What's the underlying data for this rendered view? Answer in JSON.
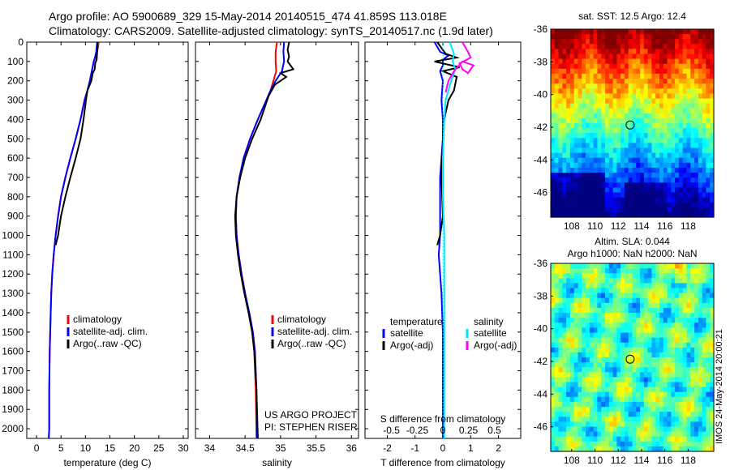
{
  "header": {
    "title1": "Argo profile: AO 5900689_329 15-May-2014 20140515_474 41.859S 113.018E",
    "title2": "Climatology: CARS2009. Satellite-adjusted climatology: synTS_20140517.nc (1.9d later)"
  },
  "stamp": "IMOS 24-May-2014 20:00:21",
  "colors": {
    "climatology": "#ff0000",
    "satellite": "#0000ff",
    "argo": "#000000",
    "sal_satellite": "#00e5ff",
    "sal_argo": "#ff00ff"
  },
  "credit": {
    "line1": "US ARGO PROJECT",
    "line2": "PI: STEPHEN RISER"
  },
  "chart_data": [
    {
      "type": "line",
      "name": "temperature",
      "xlabel": "temperature (deg C)",
      "ylabel": "",
      "xlim": [
        -2,
        31
      ],
      "ylim": [
        2050,
        0
      ],
      "y_reversed": true,
      "xticks": [
        0,
        5,
        10,
        15,
        20,
        25,
        30
      ],
      "yticks": [
        0,
        100,
        200,
        300,
        400,
        500,
        600,
        700,
        800,
        900,
        1000,
        1100,
        1200,
        1300,
        1400,
        1500,
        1600,
        1700,
        1800,
        1900,
        2000
      ],
      "legend": [
        "climatology",
        "satellite-adj. clim.",
        "Argo(..raw -QC)"
      ],
      "series": [
        {
          "name": "climatology",
          "color": "#ff0000",
          "x": [
            12.7,
            12.6,
            12.4,
            12.1,
            11.7,
            11.3,
            10.9,
            10.4,
            9.8,
            9.0,
            8.0,
            6.9,
            5.9,
            5.0,
            4.4,
            3.9,
            3.5,
            3.2,
            3.0,
            2.9,
            2.8,
            2.7,
            2.6,
            2.6,
            2.5
          ],
          "y": [
            0,
            25,
            50,
            75,
            100,
            150,
            200,
            250,
            300,
            400,
            500,
            600,
            700,
            800,
            900,
            1000,
            1100,
            1200,
            1300,
            1400,
            1500,
            1600,
            1800,
            2000,
            2050
          ]
        },
        {
          "name": "satellite-adj. clim.",
          "color": "#0000ff",
          "x": [
            12.4,
            12.3,
            12.2,
            12.0,
            11.7,
            11.3,
            10.9,
            10.4,
            9.8,
            9.0,
            8.0,
            6.9,
            5.9,
            5.0,
            4.4,
            3.9,
            3.5,
            3.2,
            3.0,
            2.9,
            2.8,
            2.7,
            2.6,
            2.6,
            2.5
          ],
          "y": [
            0,
            25,
            50,
            75,
            100,
            150,
            200,
            250,
            300,
            400,
            500,
            600,
            700,
            800,
            900,
            1000,
            1100,
            1200,
            1300,
            1400,
            1500,
            1600,
            1800,
            2000,
            2050
          ]
        },
        {
          "name": "Argo(..raw -QC)",
          "color": "#000000",
          "x": [
            12.5,
            12.4,
            12.4,
            12.3,
            12.0,
            11.9,
            11.5,
            11.2,
            10.4,
            10.1,
            9.6,
            9.0,
            8.0,
            6.9,
            5.9,
            5.0,
            4.4,
            3.9
          ],
          "y": [
            0,
            25,
            50,
            90,
            110,
            140,
            160,
            200,
            250,
            300,
            400,
            500,
            600,
            700,
            800,
            900,
            1000,
            1050
          ]
        }
      ]
    },
    {
      "type": "line",
      "name": "salinity",
      "xlabel": "salinity",
      "ylabel": "",
      "xlim": [
        33.8,
        36.1
      ],
      "ylim": [
        2050,
        0
      ],
      "y_reversed": true,
      "xticks": [
        34,
        34.5,
        35,
        35.5,
        36
      ],
      "legend": [
        "climatology",
        "satellite-adj. clim.",
        "Argo(..raw -QC)"
      ],
      "series": [
        {
          "name": "climatology",
          "color": "#ff0000",
          "x": [
            34.95,
            34.93,
            34.93,
            34.94,
            34.9,
            34.86,
            34.8,
            34.68,
            34.57,
            34.48,
            34.42,
            34.38,
            34.37,
            34.38,
            34.41,
            34.45,
            34.5,
            34.55,
            34.6,
            34.63,
            34.65,
            34.66
          ],
          "y": [
            0,
            50,
            100,
            150,
            200,
            250,
            300,
            400,
            500,
            600,
            700,
            800,
            900,
            1000,
            1100,
            1200,
            1300,
            1400,
            1500,
            1600,
            1800,
            2050
          ]
        },
        {
          "name": "satellite-adj. clim.",
          "color": "#0000ff",
          "x": [
            35.05,
            35.04,
            35.05,
            35.02,
            34.93,
            34.86,
            34.8,
            34.68,
            34.57,
            34.48,
            34.42,
            34.38,
            34.37,
            34.38,
            34.41,
            34.45,
            34.5,
            34.56,
            34.61,
            34.64,
            34.66,
            34.67
          ],
          "y": [
            0,
            50,
            100,
            150,
            200,
            250,
            300,
            400,
            500,
            600,
            700,
            800,
            900,
            1000,
            1100,
            1200,
            1300,
            1400,
            1500,
            1600,
            1800,
            2050
          ]
        },
        {
          "name": "Argo(..raw -QC)",
          "color": "#000000",
          "x": [
            35.12,
            35.1,
            35.12,
            35.1,
            35.18,
            35.0,
            35.08,
            34.92,
            34.83,
            34.72,
            34.6,
            34.5,
            34.43,
            34.38,
            34.36,
            34.37,
            34.4,
            34.44,
            34.49,
            34.55,
            34.6,
            34.63,
            34.66,
            34.68
          ],
          "y": [
            0,
            40,
            75,
            100,
            140,
            160,
            180,
            220,
            280,
            400,
            500,
            600,
            700,
            800,
            900,
            1000,
            1100,
            1200,
            1300,
            1400,
            1500,
            1600,
            1800,
            2050
          ]
        }
      ]
    },
    {
      "type": "line",
      "name": "differences",
      "xlabel": "T difference from climatology",
      "xlabel_top": "S difference from climatology",
      "xlim": [
        -2.8,
        2.8
      ],
      "ylim": [
        2050,
        0
      ],
      "y_reversed": true,
      "xticks": [
        -2,
        -1,
        0,
        1,
        2
      ],
      "top_ticks": [
        {
          "label": "-0.5",
          "x": -1.85
        },
        {
          "label": "-0.25",
          "x": -0.92
        },
        {
          "label": "0",
          "x": 0
        },
        {
          "label": "0.25",
          "x": 0.92
        },
        {
          "label": "0.5",
          "x": 1.85
        }
      ],
      "legend_headers": [
        "temperature",
        "salinity"
      ],
      "legend": [
        "satellite",
        "Argo(-adj)",
        "satellite",
        "Argo(-adj)"
      ],
      "series": [
        {
          "name": "T satellite",
          "color": "#0000ff",
          "x": [
            -0.3,
            -0.1,
            0.2,
            0.0,
            0.0,
            -0.1,
            0.0,
            -0.05,
            0.0,
            0.0,
            -0.1,
            -0.1,
            -0.1,
            -0.15,
            -0.1,
            -0.05,
            0.0,
            0.0
          ],
          "y": [
            0,
            50,
            70,
            90,
            120,
            150,
            200,
            300,
            400,
            500,
            700,
            900,
            1000,
            1100,
            1200,
            1300,
            1500,
            2050
          ]
        },
        {
          "name": "T Argo(-adj)",
          "color": "#000000",
          "x": [
            -0.2,
            0.1,
            0.5,
            -0.3,
            0.6,
            0.0,
            0.5,
            0.4,
            0.2,
            0.05,
            0.0,
            -0.05,
            0.0,
            -0.1,
            -0.2
          ],
          "y": [
            0,
            60,
            80,
            100,
            130,
            150,
            180,
            250,
            300,
            400,
            500,
            700,
            900,
            1000,
            1050
          ]
        },
        {
          "name": "S satellite",
          "color": "#00e5ff",
          "x": [
            0.25,
            0.4,
            0.35,
            0.45,
            0.3,
            0.1,
            0.05,
            0.0,
            0.0,
            0.05,
            0.05,
            0.05,
            0.05
          ],
          "y": [
            0,
            60,
            100,
            140,
            200,
            300,
            400,
            600,
            800,
            1000,
            1400,
            1800,
            2050
          ]
        },
        {
          "name": "S Argo(-adj)",
          "color": "#ff00ff",
          "x": [
            0.7,
            0.9,
            1.0,
            0.6,
            0.7,
            0.9,
            1.1,
            0.7,
            0.4,
            0.2,
            0.1
          ],
          "y": [
            0,
            50,
            80,
            110,
            140,
            160,
            120,
            100,
            150,
            200,
            260
          ]
        }
      ]
    },
    {
      "type": "heatmap",
      "name": "sat-sst-map",
      "title": "sat. SST: 12.5 Argo: 12.4",
      "xlim": [
        106.2,
        120.2
      ],
      "ylim": [
        -47.5,
        -36
      ],
      "xticks": [
        108,
        110,
        112,
        114,
        116,
        118
      ],
      "yticks": [
        -36,
        -38,
        -40,
        -42,
        -44,
        -46
      ],
      "marker": {
        "lon": 113.018,
        "lat": -41.859
      },
      "colormap": "jet"
    },
    {
      "type": "heatmap",
      "name": "altim-sla-map",
      "title": "Altim. SLA: 0.044",
      "subtitle": "Argo h1000: NaN h2000: NaN",
      "xlim": [
        106.2,
        120.2
      ],
      "ylim": [
        -47.5,
        -36
      ],
      "xticks": [
        108,
        110,
        112,
        114,
        116,
        118
      ],
      "yticks": [
        -36,
        -38,
        -40,
        -42,
        -44,
        -46
      ],
      "marker": {
        "lon": 113.018,
        "lat": -41.859
      },
      "colormap": "jet"
    }
  ]
}
